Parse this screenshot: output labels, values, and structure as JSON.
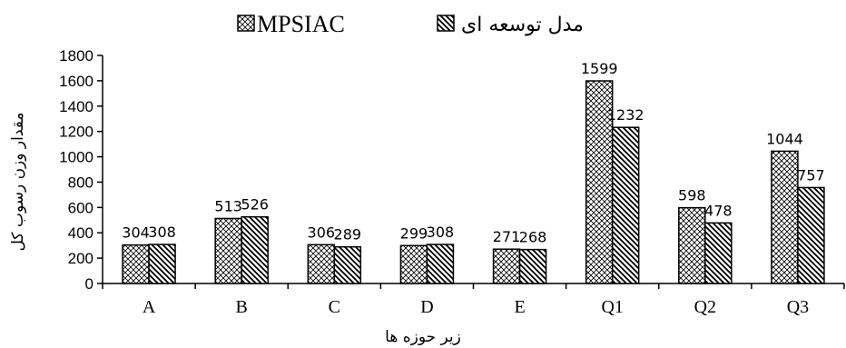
{
  "chart_data": {
    "type": "bar",
    "categories": [
      "A",
      "B",
      "C",
      "D",
      "E",
      "Q1",
      "Q2",
      "Q3"
    ],
    "series": [
      {
        "name": "MPSIAC",
        "values": [
          304,
          513,
          306,
          299,
          271,
          1599,
          598,
          1044
        ]
      },
      {
        "name": "مدل توسعه ای",
        "values": [
          308,
          526,
          289,
          308,
          268,
          1232,
          478,
          757
        ]
      }
    ],
    "xlabel": "زیر حوزه ها",
    "ylabel": "مقدار وزن رسوب کل",
    "ylim": [
      0,
      1800
    ],
    "yticks": [
      0,
      200,
      400,
      600,
      800,
      1000,
      1200,
      1400,
      1600,
      1800
    ],
    "legend_position": "top",
    "grid": false,
    "colors": {
      "axis": "#000000",
      "bar_outline": "#000000",
      "background": "#ffffff"
    }
  }
}
